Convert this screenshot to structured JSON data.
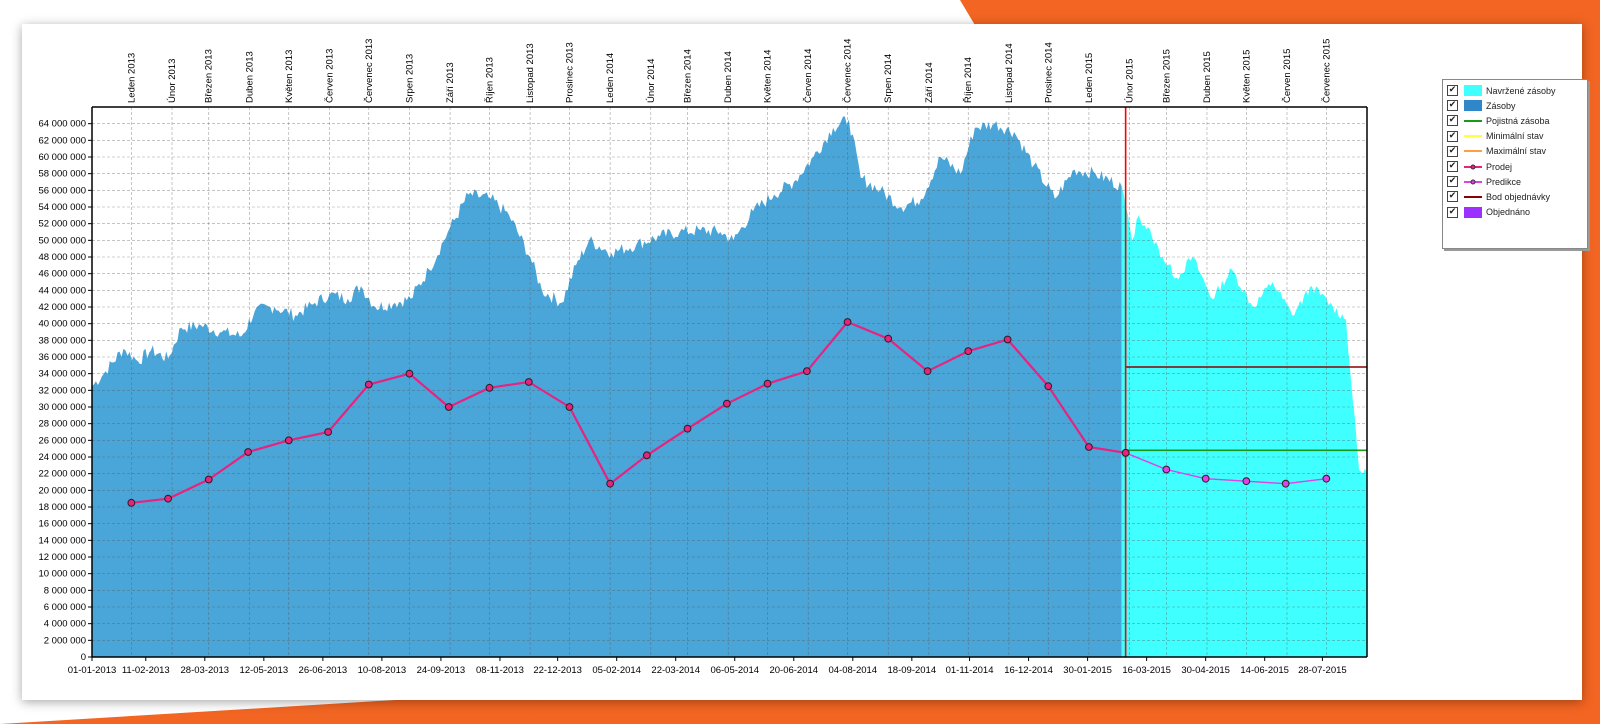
{
  "colors": {
    "accent_orange": "#f26522",
    "inventory": "#4aa5d8",
    "proposed": "#40ffff",
    "sales": "#e8237f",
    "prediction": "#e040e8",
    "reorder_point": "#8b0000",
    "safety_stock": "#1a9a1a",
    "today_line": "#ff0000",
    "min_stock": "#ffff40",
    "max_stock": "#ffa040",
    "ordered": "#9b30ff"
  },
  "legend": [
    {
      "label": "Navržené zásoby",
      "kind": "box",
      "color": "#40ffff",
      "checked": true
    },
    {
      "label": "Zásoby",
      "kind": "box",
      "color": "#2f86c9",
      "checked": true
    },
    {
      "label": "Pojistná zásoba",
      "kind": "line",
      "color": "#1a9a1a",
      "checked": true
    },
    {
      "label": "Minimální stav",
      "kind": "line",
      "color": "#ffff40",
      "checked": true
    },
    {
      "label": "Maximální stav",
      "kind": "line",
      "color": "#ffa040",
      "checked": true
    },
    {
      "label": "Prodej",
      "kind": "dotline",
      "color": "#e8237f",
      "checked": true
    },
    {
      "label": "Predikce",
      "kind": "dotline",
      "color": "#e040e8",
      "checked": true
    },
    {
      "label": "Bod objednávky",
      "kind": "line",
      "color": "#8b0000",
      "checked": true
    },
    {
      "label": "Objednáno",
      "kind": "box",
      "color": "#9b30ff",
      "checked": true
    }
  ],
  "chart_data": {
    "type": "area",
    "grid": true,
    "legend_position": "right",
    "ylim": [
      0,
      66000000
    ],
    "xlim": [
      "2013-01-01",
      "2015-08-31"
    ],
    "y_ticks": [
      "0",
      "2 000 000",
      "4 000 000",
      "6 000 000",
      "8 000 000",
      "10 000 000",
      "12 000 000",
      "14 000 000",
      "16 000 000",
      "18 000 000",
      "20 000 000",
      "22 000 000",
      "24 000 000",
      "26 000 000",
      "28 000 000",
      "30 000 000",
      "32 000 000",
      "34 000 000",
      "36 000 000",
      "38 000 000",
      "40 000 000",
      "42 000 000",
      "44 000 000",
      "46 000 000",
      "48 000 000",
      "50 000 000",
      "52 000 000",
      "54 000 000",
      "56 000 000",
      "58 000 000",
      "60 000 000",
      "62 000 000",
      "64 000 000"
    ],
    "x_ticks": [
      "01-01-2013",
      "11-02-2013",
      "28-03-2013",
      "12-05-2013",
      "26-06-2013",
      "10-08-2013",
      "24-09-2013",
      "08-11-2013",
      "22-12-2013",
      "05-02-2014",
      "22-03-2014",
      "06-05-2014",
      "20-06-2014",
      "04-08-2014",
      "18-09-2014",
      "01-11-2014",
      "16-12-2014",
      "30-01-2015",
      "16-03-2015",
      "30-04-2015",
      "14-06-2015",
      "28-07-2015"
    ],
    "month_labels": [
      "Leden 2013",
      "Únor 2013",
      "Březen 2013",
      "Duben 2013",
      "Květen 2013",
      "Červen 2013",
      "Červenec 2013",
      "Srpen 2013",
      "Září 2013",
      "Říjen 2013",
      "Listopad 2013",
      "Prosinec 2013",
      "Leden 2014",
      "Únor 2014",
      "Březen 2014",
      "Duben 2014",
      "Květen 2014",
      "Červen 2014",
      "Červenec 2014",
      "Srpen 2014",
      "Září 2014",
      "Říjen 2014",
      "Listopad 2014",
      "Prosinec 2014",
      "Leden 2015",
      "Únor 2015",
      "Březen 2015",
      "Duben 2015",
      "Květen 2015",
      "Červen 2015",
      "Červenec 2015"
    ],
    "series": [
      {
        "name": "Zásoby",
        "type": "area",
        "points": [
          [
            "2013-01-01",
            32500000
          ],
          [
            "2013-01-10",
            34000000
          ],
          [
            "2013-01-25",
            37000000
          ],
          [
            "2013-02-05",
            35500000
          ],
          [
            "2013-02-15",
            36800000
          ],
          [
            "2013-02-28",
            35800000
          ],
          [
            "2013-03-10",
            39500000
          ],
          [
            "2013-03-25",
            39800000
          ],
          [
            "2013-04-10",
            39000000
          ],
          [
            "2013-04-25",
            38500000
          ],
          [
            "2013-05-05",
            41500000
          ],
          [
            "2013-05-20",
            42000000
          ],
          [
            "2013-06-05",
            41000000
          ],
          [
            "2013-06-20",
            42500000
          ],
          [
            "2013-07-01",
            43500000
          ],
          [
            "2013-07-15",
            43000000
          ],
          [
            "2013-07-25",
            44500000
          ],
          [
            "2013-08-05",
            42000000
          ],
          [
            "2013-08-20",
            42500000
          ],
          [
            "2013-09-01",
            43000000
          ],
          [
            "2013-09-15",
            46500000
          ],
          [
            "2013-10-01",
            51500000
          ],
          [
            "2013-10-15",
            55500000
          ],
          [
            "2013-11-01",
            55000000
          ],
          [
            "2013-11-15",
            53000000
          ],
          [
            "2013-12-01",
            48000000
          ],
          [
            "2013-12-10",
            44000000
          ],
          [
            "2013-12-25",
            42500000
          ],
          [
            "2014-01-05",
            47000000
          ],
          [
            "2014-01-15",
            50000000
          ],
          [
            "2014-02-01",
            48500000
          ],
          [
            "2014-02-20",
            49500000
          ],
          [
            "2014-03-10",
            50500000
          ],
          [
            "2014-03-25",
            51000000
          ],
          [
            "2014-04-10",
            51200000
          ],
          [
            "2014-04-25",
            51000000
          ],
          [
            "2014-05-05",
            50000000
          ],
          [
            "2014-05-20",
            53500000
          ],
          [
            "2014-06-05",
            55500000
          ],
          [
            "2014-06-20",
            57000000
          ],
          [
            "2014-07-05",
            60000000
          ],
          [
            "2014-07-20",
            63500000
          ],
          [
            "2014-08-01",
            64500000
          ],
          [
            "2014-08-10",
            57500000
          ],
          [
            "2014-08-25",
            56000000
          ],
          [
            "2014-09-10",
            54000000
          ],
          [
            "2014-09-25",
            55000000
          ],
          [
            "2014-10-10",
            60000000
          ],
          [
            "2014-10-25",
            58000000
          ],
          [
            "2014-11-05",
            63500000
          ],
          [
            "2014-11-20",
            64000000
          ],
          [
            "2014-12-05",
            63000000
          ],
          [
            "2014-12-20",
            59000000
          ],
          [
            "2015-01-05",
            55000000
          ],
          [
            "2015-01-20",
            58500000
          ],
          [
            "2015-02-05",
            58000000
          ],
          [
            "2015-02-25",
            56500000
          ]
        ]
      },
      {
        "name": "Navržené zásoby",
        "type": "area",
        "points": [
          [
            "2015-02-25",
            56500000
          ],
          [
            "2015-03-05",
            50000000
          ],
          [
            "2015-03-10",
            53000000
          ],
          [
            "2015-03-20",
            50500000
          ],
          [
            "2015-03-28",
            48000000
          ],
          [
            "2015-04-08",
            45500000
          ],
          [
            "2015-04-20",
            48000000
          ],
          [
            "2015-05-05",
            43000000
          ],
          [
            "2015-05-20",
            46500000
          ],
          [
            "2015-06-05",
            42000000
          ],
          [
            "2015-06-20",
            45000000
          ],
          [
            "2015-07-05",
            41000000
          ],
          [
            "2015-07-20",
            44500000
          ],
          [
            "2015-08-05",
            42000000
          ],
          [
            "2015-08-15",
            40500000
          ],
          [
            "2015-08-20",
            31000000
          ],
          [
            "2015-08-25",
            22500000
          ],
          [
            "2015-08-31",
            22000000
          ]
        ]
      },
      {
        "name": "Prodej",
        "type": "line",
        "points": [
          [
            "2013-01-31",
            18500000
          ],
          [
            "2013-02-28",
            19000000
          ],
          [
            "2013-03-31",
            21300000
          ],
          [
            "2013-04-30",
            24600000
          ],
          [
            "2013-05-31",
            26000000
          ],
          [
            "2013-06-30",
            27000000
          ],
          [
            "2013-07-31",
            32700000
          ],
          [
            "2013-08-31",
            34000000
          ],
          [
            "2013-09-30",
            30000000
          ],
          [
            "2013-10-31",
            32300000
          ],
          [
            "2013-11-30",
            33000000
          ],
          [
            "2013-12-31",
            30000000
          ],
          [
            "2014-01-31",
            20800000
          ],
          [
            "2014-02-28",
            24200000
          ],
          [
            "2014-03-31",
            27400000
          ],
          [
            "2014-04-30",
            30400000
          ],
          [
            "2014-05-31",
            32800000
          ],
          [
            "2014-06-30",
            34300000
          ],
          [
            "2014-07-31",
            40200000
          ],
          [
            "2014-08-31",
            38200000
          ],
          [
            "2014-09-30",
            34300000
          ],
          [
            "2014-10-31",
            36700000
          ],
          [
            "2014-11-30",
            38100000
          ],
          [
            "2014-12-31",
            32500000
          ],
          [
            "2015-01-31",
            25200000
          ],
          [
            "2015-02-28",
            24500000
          ]
        ]
      },
      {
        "name": "Predikce",
        "type": "line",
        "points": [
          [
            "2015-02-28",
            24500000
          ],
          [
            "2015-03-31",
            22500000
          ],
          [
            "2015-04-30",
            21400000
          ],
          [
            "2015-05-31",
            21100000
          ],
          [
            "2015-06-30",
            20800000
          ],
          [
            "2015-07-31",
            21400000
          ]
        ]
      },
      {
        "name": "Bod objednávky",
        "type": "hline",
        "value": 34800000,
        "from": "2015-02-28",
        "to": "2015-08-31"
      },
      {
        "name": "Pojistná zásoba",
        "type": "hline",
        "value": 24800000,
        "from": "2015-02-28",
        "to": "2015-08-31"
      }
    ],
    "current_date": "2015-02-28"
  }
}
